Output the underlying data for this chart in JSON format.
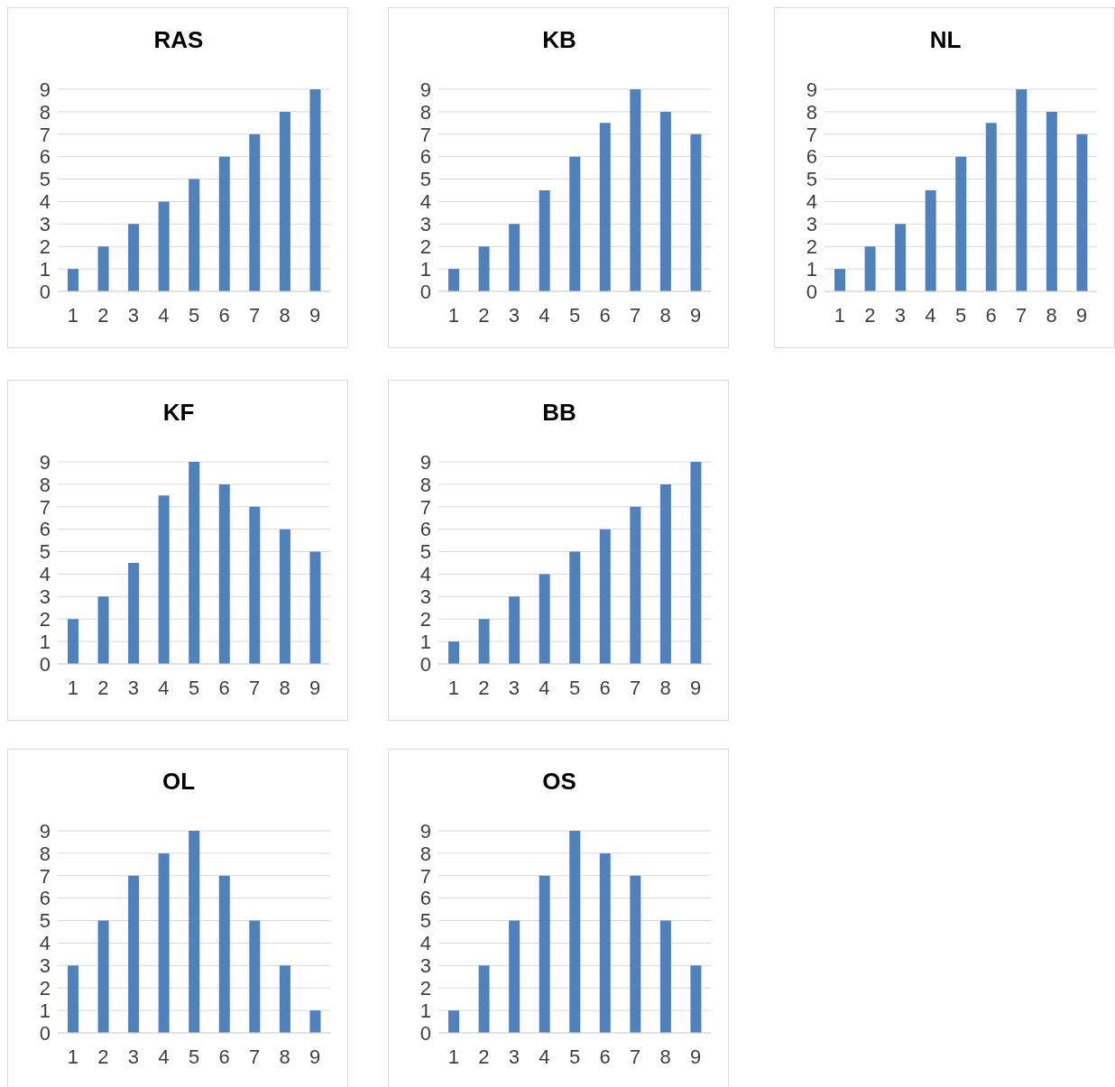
{
  "chart_data": [
    {
      "type": "bar",
      "title": "RAS",
      "categories": [
        "1",
        "2",
        "3",
        "4",
        "5",
        "6",
        "7",
        "8",
        "9"
      ],
      "values": [
        1,
        2,
        3,
        4,
        5,
        6,
        7,
        8,
        9
      ],
      "color": "#4f81bd",
      "ylim": [
        0,
        9
      ],
      "yticks": [
        0,
        1,
        2,
        3,
        4,
        5,
        6,
        7,
        8,
        9
      ],
      "grid": "y"
    },
    {
      "type": "bar",
      "title": "KB",
      "categories": [
        "1",
        "2",
        "3",
        "4",
        "5",
        "6",
        "7",
        "8",
        "9"
      ],
      "values": [
        1,
        2,
        3,
        4.5,
        6,
        7.5,
        9,
        8,
        7
      ],
      "color": "#4f81bd",
      "ylim": [
        0,
        9
      ],
      "yticks": [
        0,
        1,
        2,
        3,
        4,
        5,
        6,
        7,
        8,
        9
      ],
      "grid": "y"
    },
    {
      "type": "bar",
      "title": "NL",
      "categories": [
        "1",
        "2",
        "3",
        "4",
        "5",
        "6",
        "7",
        "8",
        "9"
      ],
      "values": [
        1,
        2,
        3,
        4.5,
        6,
        7.5,
        9,
        8,
        7
      ],
      "color": "#4f81bd",
      "ylim": [
        0,
        9
      ],
      "yticks": [
        0,
        1,
        2,
        3,
        4,
        5,
        6,
        7,
        8,
        9
      ],
      "grid": "y"
    },
    {
      "type": "bar",
      "title": "KF",
      "categories": [
        "1",
        "2",
        "3",
        "4",
        "5",
        "6",
        "7",
        "8",
        "9"
      ],
      "values": [
        2,
        3,
        4.5,
        7.5,
        9,
        8,
        7,
        6,
        5
      ],
      "color": "#4f81bd",
      "ylim": [
        0,
        9
      ],
      "yticks": [
        0,
        1,
        2,
        3,
        4,
        5,
        6,
        7,
        8,
        9
      ],
      "grid": "y"
    },
    {
      "type": "bar",
      "title": "BB",
      "categories": [
        "1",
        "2",
        "3",
        "4",
        "5",
        "6",
        "7",
        "8",
        "9"
      ],
      "values": [
        1,
        2,
        3,
        4,
        5,
        6,
        7,
        8,
        9
      ],
      "color": "#4f81bd",
      "ylim": [
        0,
        9
      ],
      "yticks": [
        0,
        1,
        2,
        3,
        4,
        5,
        6,
        7,
        8,
        9
      ],
      "grid": "y"
    },
    {
      "type": "bar",
      "title": "OL",
      "categories": [
        "1",
        "2",
        "3",
        "4",
        "5",
        "6",
        "7",
        "8",
        "9"
      ],
      "values": [
        3,
        5,
        7,
        8,
        9,
        7,
        5,
        3,
        1
      ],
      "color": "#4f81bd",
      "ylim": [
        0,
        9
      ],
      "yticks": [
        0,
        1,
        2,
        3,
        4,
        5,
        6,
        7,
        8,
        9
      ],
      "grid": "y"
    },
    {
      "type": "bar",
      "title": "OS",
      "categories": [
        "1",
        "2",
        "3",
        "4",
        "5",
        "6",
        "7",
        "8",
        "9"
      ],
      "values": [
        1,
        3,
        5,
        7,
        9,
        8,
        7,
        5,
        3
      ],
      "color": "#4f81bd",
      "ylim": [
        0,
        9
      ],
      "yticks": [
        0,
        1,
        2,
        3,
        4,
        5,
        6,
        7,
        8,
        9
      ],
      "grid": "y"
    }
  ]
}
